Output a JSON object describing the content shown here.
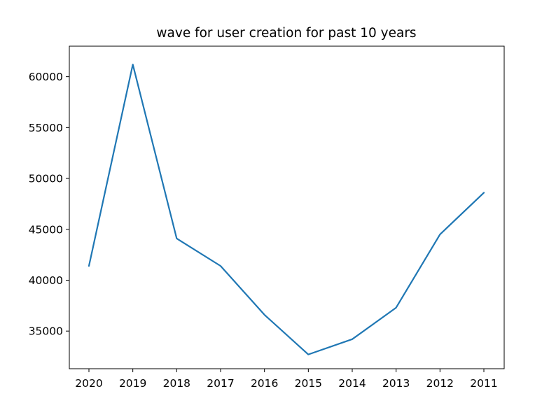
{
  "chart_data": {
    "type": "line",
    "title": "wave for user creation for past 10 years",
    "xlabel": "",
    "ylabel": "",
    "categories": [
      "2020",
      "2019",
      "2018",
      "2017",
      "2016",
      "2015",
      "2014",
      "2013",
      "2012",
      "2011"
    ],
    "series": [
      {
        "values": [
          41400,
          61200,
          44100,
          41400,
          36600,
          32700,
          34200,
          37300,
          44500,
          48600
        ]
      }
    ],
    "yticks": [
      35000,
      40000,
      45000,
      50000,
      55000,
      60000
    ],
    "ytick_labels": [
      "35000",
      "40000",
      "45000",
      "50000",
      "55000",
      "60000"
    ],
    "ylim": [
      31300,
      63000
    ],
    "grid": false,
    "line_color": "#1f77b4"
  }
}
